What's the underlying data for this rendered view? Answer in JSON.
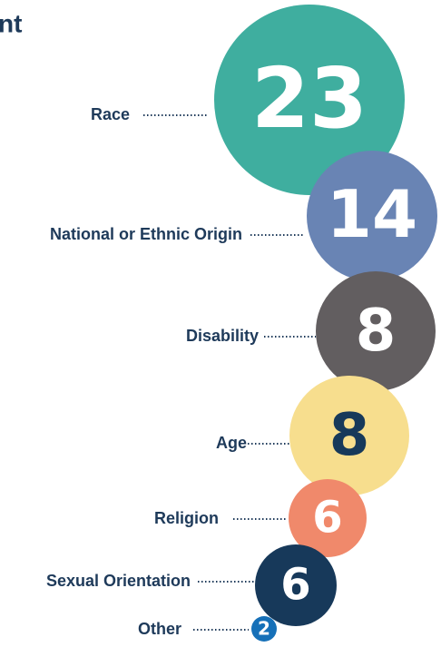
{
  "chart_data": {
    "type": "bubble",
    "title": "nt",
    "categories": [
      "Race",
      "National or Ethnic Origin",
      "Disability",
      "Age",
      "Religion",
      "Sexual Orientation",
      "Other"
    ],
    "values": [
      23,
      14,
      8,
      8,
      6,
      6,
      2
    ],
    "colors": [
      "#3fae9f",
      "#6984b4",
      "#625e60",
      "#f7de8e",
      "#f0896b",
      "#17395a",
      "#1670b8"
    ],
    "text_colors": [
      "#ffffff",
      "#ffffff",
      "#ffffff",
      "#17395a",
      "#ffffff",
      "#ffffff",
      "#ffffff"
    ]
  }
}
